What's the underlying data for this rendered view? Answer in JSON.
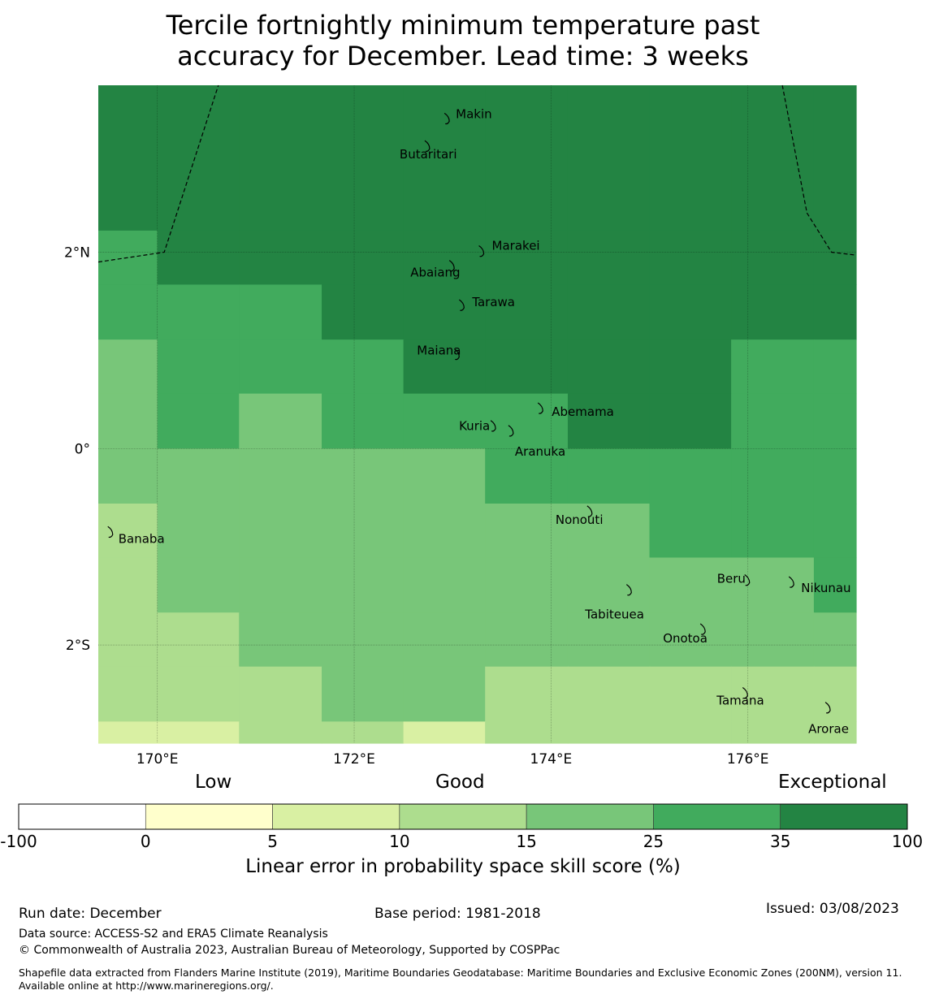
{
  "title_line1": "Tercile fortnightly minimum temperature past",
  "title_line2": "accuracy for December. Lead time: 3 weeks",
  "map": {
    "lon_range": [
      169.4,
      177.1
    ],
    "lat_range": [
      -3.0,
      3.7
    ],
    "lon_ticks": [
      {
        "value": 170,
        "label": "170°E"
      },
      {
        "value": 172,
        "label": "172°E"
      },
      {
        "value": 174,
        "label": "174°E"
      },
      {
        "value": 176,
        "label": "176°E"
      }
    ],
    "lat_ticks": [
      {
        "value": 2,
        "label": "2°N"
      },
      {
        "value": 0,
        "label": "0°"
      },
      {
        "value": -2,
        "label": "2°S"
      }
    ],
    "cell_lon_edges": [
      169.4,
      170.0,
      170.83,
      171.67,
      172.5,
      173.33,
      174.17,
      175.0,
      175.83,
      176.67,
      177.1
    ],
    "cell_lat_edges": [
      3.7,
      2.22,
      1.67,
      1.11,
      0.56,
      0.0,
      -0.56,
      -1.11,
      -1.67,
      -2.22,
      -2.78,
      -3.0
    ],
    "cell_classes": [
      [
        6,
        6,
        6,
        6,
        6,
        6,
        6,
        6,
        6,
        6
      ],
      [
        5,
        6,
        6,
        6,
        6,
        6,
        6,
        6,
        6,
        6
      ],
      [
        5,
        5,
        5,
        6,
        6,
        6,
        6,
        6,
        6,
        6
      ],
      [
        4,
        5,
        5,
        5,
        6,
        6,
        6,
        6,
        5,
        5
      ],
      [
        4,
        5,
        4,
        5,
        5,
        5,
        6,
        6,
        5,
        5
      ],
      [
        4,
        4,
        4,
        4,
        4,
        5,
        5,
        5,
        5,
        5
      ],
      [
        3,
        4,
        4,
        4,
        4,
        4,
        4,
        5,
        5,
        5
      ],
      [
        3,
        4,
        4,
        4,
        4,
        4,
        4,
        4,
        4,
        5
      ],
      [
        3,
        3,
        4,
        4,
        4,
        4,
        4,
        4,
        4,
        4
      ],
      [
        3,
        3,
        3,
        4,
        4,
        3,
        3,
        3,
        3,
        3
      ],
      [
        2,
        2,
        3,
        3,
        2,
        3,
        3,
        3,
        3,
        3
      ]
    ],
    "islands": [
      {
        "name": "Makin",
        "lon": 172.95,
        "lat": 3.35
      },
      {
        "name": "Butaritari",
        "lon": 172.75,
        "lat": 3.07
      },
      {
        "name": "Marakei",
        "lon": 173.3,
        "lat": 2.0
      },
      {
        "name": "Abaiang",
        "lon": 173.0,
        "lat": 1.85
      },
      {
        "name": "Tarawa",
        "lon": 173.1,
        "lat": 1.45
      },
      {
        "name": "Maiana",
        "lon": 173.05,
        "lat": 0.95
      },
      {
        "name": "Abemama",
        "lon": 173.9,
        "lat": 0.4
      },
      {
        "name": "Kuria",
        "lon": 173.42,
        "lat": 0.22
      },
      {
        "name": "Aranuka",
        "lon": 173.6,
        "lat": 0.17
      },
      {
        "name": "Nonouti",
        "lon": 174.4,
        "lat": -0.65
      },
      {
        "name": "Banaba",
        "lon": 169.53,
        "lat": -0.86
      },
      {
        "name": "Tabiteuea",
        "lon": 174.8,
        "lat": -1.45
      },
      {
        "name": "Beru",
        "lon": 176.0,
        "lat": -1.35
      },
      {
        "name": "Nikunau",
        "lon": 176.45,
        "lat": -1.37
      },
      {
        "name": "Onotoa",
        "lon": 175.55,
        "lat": -1.85
      },
      {
        "name": "Tamana",
        "lon": 175.98,
        "lat": -2.5
      },
      {
        "name": "Arorae",
        "lon": 176.82,
        "lat": -2.65
      }
    ],
    "boundary_lines": [
      [
        [
          169.4,
          1.9
        ],
        [
          170.07,
          2.0
        ],
        [
          170.62,
          3.7
        ]
      ],
      [
        [
          176.35,
          3.7
        ],
        [
          176.6,
          2.4
        ],
        [
          176.85,
          2.0
        ],
        [
          177.1,
          1.97
        ]
      ]
    ]
  },
  "colorbar": {
    "qualitative_labels": [
      "Low",
      "Good",
      "Exceptional"
    ],
    "tick_labels": [
      "-100",
      "0",
      "5",
      "10",
      "15",
      "25",
      "35",
      "100"
    ],
    "colors": [
      "#ffffff",
      "#ffffcc",
      "#d9f0a3",
      "#addd8e",
      "#78c679",
      "#41ab5d",
      "#238443"
    ],
    "title": "Linear error in probability space skill score (%)"
  },
  "footer": {
    "run_date": "Run date: December",
    "base_period": "Base period: 1981-2018",
    "issued": "Issued: 03/08/2023",
    "data_source": "Data source: ACCESS-S2 and ERA5 Climate Reanalysis",
    "copyright": "© Commonwealth of Australia 2023, Australian Bureau of Meteorology, Supported by COSPPac",
    "shapefile": "Shapefile data extracted from Flanders Marine Institute (2019), Maritime Boundaries Geodatabase: Maritime Boundaries and Exclusive Economic Zones (200NM), version 11. Available online at http://www.marineregions.org/."
  }
}
